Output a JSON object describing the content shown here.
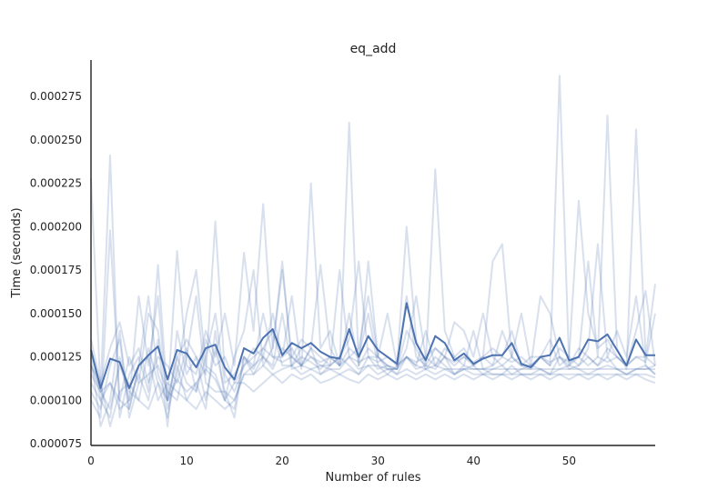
{
  "chart_data": {
    "type": "line",
    "title": "eq_add",
    "xlabel": "Number of rules",
    "ylabel": "Time (seconds)",
    "xlim": [
      0,
      59
    ],
    "ylim": [
      7.4e-05,
      0.000296
    ],
    "xticks": [
      0,
      10,
      20,
      30,
      40,
      50
    ],
    "yticks": [
      7.5e-05,
      0.0001,
      0.000125,
      0.00015,
      0.000175,
      0.0002,
      0.000225,
      0.00025,
      0.000275
    ],
    "ytick_labels": [
      "0.000075",
      "0.000100",
      "0.000125",
      "0.000150",
      "0.000175",
      "0.000200",
      "0.000225",
      "0.000250",
      "0.000275"
    ],
    "grid": false,
    "colors": {
      "run": "#4c72b0",
      "mean": "#4c72b0",
      "axis": "#222222"
    },
    "x": [
      0,
      1,
      2,
      3,
      4,
      5,
      6,
      7,
      8,
      9,
      10,
      11,
      12,
      13,
      14,
      15,
      16,
      17,
      18,
      19,
      20,
      21,
      22,
      23,
      24,
      25,
      26,
      27,
      28,
      29,
      30,
      31,
      32,
      33,
      34,
      35,
      36,
      37,
      38,
      39,
      40,
      41,
      42,
      43,
      44,
      45,
      46,
      47,
      48,
      49,
      50,
      51,
      52,
      53,
      54,
      55,
      56,
      57,
      58,
      59
    ],
    "mean": [
      0.000129,
      0.000107,
      0.000124,
      0.000122,
      0.000107,
      0.00012,
      0.000126,
      0.000131,
      0.000112,
      0.000129,
      0.000127,
      0.000119,
      0.00013,
      0.000132,
      0.000119,
      0.000112,
      0.00013,
      0.000127,
      0.000136,
      0.000141,
      0.000126,
      0.000133,
      0.00013,
      0.000133,
      0.000128,
      0.000125,
      0.000124,
      0.000141,
      0.000125,
      0.000137,
      0.000129,
      0.000125,
      0.000121,
      0.000156,
      0.000133,
      0.000123,
      0.000137,
      0.000133,
      0.000123,
      0.000127,
      0.000121,
      0.000124,
      0.000126,
      0.000126,
      0.000133,
      0.000121,
      0.000119,
      0.000125,
      0.000126,
      0.000136,
      0.000123,
      0.000125,
      0.000135,
      0.000134,
      0.000138,
      0.000129,
      0.00012,
      0.000135,
      0.000126,
      0.000126
    ],
    "series": [
      {
        "values": [
          0.000228,
          0.000105,
          9.5e-05,
          0.00012,
          0.000105,
          0.0001,
          0.00013,
          0.00011,
          0.0001,
          0.000112,
          0.000105,
          0.00011,
          0.000118,
          0.000112,
          0.0001,
          9.5e-05,
          0.000125,
          0.000118,
          0.00013,
          0.00014,
          0.00012,
          0.00012,
          0.000125,
          0.000122,
          0.000118,
          0.000125,
          0.00012,
          0.00026,
          0.00012,
          0.00013,
          0.000125,
          0.000118,
          0.000118,
          0.00014,
          0.00013,
          0.000118,
          0.000125,
          0.00012,
          0.000115,
          0.00012,
          0.000118,
          0.000118,
          0.000115,
          0.000115,
          0.00012,
          0.000115,
          0.000115,
          0.000118,
          0.000115,
          0.000125,
          0.000118,
          0.00012,
          0.000125,
          0.00012,
          0.000125,
          0.000118,
          0.000115,
          0.000118,
          0.000118,
          0.00012
        ]
      },
      {
        "values": [
          0.00012,
          0.000105,
          0.000241,
          9e-05,
          0.000115,
          0.000125,
          0.000105,
          0.000178,
          0.0001,
          0.000125,
          0.000135,
          0.000125,
          0.000115,
          0.000203,
          0.000115,
          0.000105,
          0.00012,
          0.00013,
          0.000125,
          0.00015,
          0.000125,
          0.00016,
          0.000118,
          0.000225,
          0.00013,
          0.00014,
          0.00012,
          0.00015,
          0.00012,
          0.00018,
          0.000125,
          0.00012,
          0.000118,
          0.00016,
          0.000125,
          0.00012,
          0.000233,
          0.00014,
          0.000125,
          0.00013,
          0.00012,
          0.000125,
          0.00018,
          0.00019,
          0.000125,
          0.00012,
          0.00012,
          0.000125,
          0.00012,
          0.000287,
          0.00012,
          0.000125,
          0.00018,
          0.000125,
          0.000264,
          0.00013,
          0.000118,
          0.000256,
          0.000125,
          0.00012
        ]
      },
      {
        "values": [
          0.0001,
          9e-05,
          0.000198,
          0.0001,
          0.000125,
          0.00011,
          0.00015,
          0.00014,
          0.0001,
          0.000186,
          0.00012,
          0.000115,
          0.00014,
          0.000125,
          0.00015,
          0.00012,
          0.000185,
          0.00014,
          0.000213,
          0.00013,
          0.000175,
          0.000125,
          0.000135,
          0.00013,
          0.000178,
          0.00013,
          0.00012,
          0.00013,
          0.000125,
          0.00015,
          0.00012,
          0.000115,
          0.00012,
          0.0002,
          0.000135,
          0.00012,
          0.00013,
          0.000125,
          0.00012,
          0.000125,
          0.00012,
          0.000125,
          0.00013,
          0.000125,
          0.00014,
          0.00012,
          0.000118,
          0.000125,
          0.00012,
          0.00013,
          0.000125,
          0.000215,
          0.00015,
          0.00013,
          0.000135,
          0.000125,
          0.00012,
          0.00014,
          0.000163,
          0.00012
        ]
      },
      {
        "values": [
          0.00011,
          0.0001,
          0.00011,
          9.5e-05,
          0.0001,
          0.00016,
          0.00012,
          0.00016,
          9.5e-05,
          0.000115,
          0.00015,
          0.000175,
          0.00012,
          0.000115,
          0.0001,
          0.000125,
          0.00014,
          0.000175,
          0.00012,
          0.00013,
          0.00018,
          0.00012,
          0.00013,
          0.000125,
          0.00012,
          0.00012,
          0.000125,
          0.000135,
          0.00018,
          0.000125,
          0.000125,
          0.00015,
          0.00012,
          0.000125,
          0.00012,
          0.00014,
          0.00012,
          0.00013,
          0.000125,
          0.00012,
          0.00014,
          0.000118,
          0.00012,
          0.00014,
          0.000125,
          0.00012,
          0.000125,
          0.000125,
          0.000135,
          0.00012,
          0.000125,
          0.00012,
          0.00013,
          0.00019,
          0.000125,
          0.00014,
          0.000125,
          0.00016,
          0.00012,
          0.000115
        ]
      },
      {
        "values": [
          0.000105,
          9.5e-05,
          0.00012,
          0.000135,
          9.5e-05,
          0.00012,
          0.00016,
          0.000115,
          0.0001,
          0.000125,
          0.00011,
          0.000105,
          0.000125,
          0.00015,
          0.00011,
          0.000115,
          0.000125,
          0.00012,
          0.00015,
          0.000125,
          0.000125,
          0.00013,
          0.00012,
          0.00013,
          0.000125,
          0.00012,
          0.000175,
          0.000125,
          0.00013,
          0.00016,
          0.000125,
          0.00012,
          0.000118,
          0.00013,
          0.00016,
          0.000125,
          0.00013,
          0.000125,
          0.000145,
          0.00014,
          0.000125,
          0.00015,
          0.000125,
          0.00012,
          0.000125,
          0.00015,
          0.00012,
          0.00016,
          0.00015,
          0.000125,
          0.00012,
          0.00013,
          0.000125,
          0.00012,
          0.00013,
          0.000125,
          0.00012,
          0.000125,
          0.000125,
          0.000167
        ]
      },
      {
        "values": [
          0.000125,
          8.5e-05,
          0.0001,
          0.00014,
          9e-05,
          0.00011,
          0.000115,
          0.00012,
          0.000105,
          0.0001,
          0.000125,
          0.00016,
          0.00011,
          0.000105,
          0.000105,
          0.0001,
          0.000115,
          0.00012,
          0.000125,
          0.00012,
          0.00015,
          0.000118,
          0.00012,
          0.000118,
          0.00012,
          0.000118,
          0.000118,
          0.000125,
          0.000118,
          0.00012,
          0.00012,
          0.000118,
          0.000118,
          0.000125,
          0.00012,
          0.000118,
          0.00012,
          0.000118,
          0.000118,
          0.000118,
          0.000118,
          0.000118,
          0.000118,
          0.000118,
          0.000118,
          0.000118,
          0.000118,
          0.000118,
          0.000118,
          0.000118,
          0.000118,
          0.000118,
          0.000118,
          0.000118,
          0.000118,
          0.000118,
          0.000118,
          0.000118,
          0.000118,
          0.000118
        ]
      },
      {
        "values": [
          0.00012,
          0.00011,
          8.5e-05,
          0.000105,
          0.00011,
          0.0001,
          9.5e-05,
          0.00011,
          9e-05,
          0.00012,
          0.0001,
          9.5e-05,
          0.000105,
          0.0001,
          9.5e-05,
          0.0001,
          0.000115,
          0.000115,
          0.00012,
          0.000115,
          0.000118,
          0.00012,
          0.000115,
          0.000118,
          0.000115,
          0.000118,
          0.000115,
          0.000118,
          0.000115,
          0.00012,
          0.000115,
          0.000118,
          0.000115,
          0.000118,
          0.000115,
          0.000118,
          0.000115,
          0.000118,
          0.000115,
          0.000118,
          0.000115,
          0.000115,
          0.000115,
          0.000115,
          0.000115,
          0.000115,
          0.000115,
          0.000115,
          0.000115,
          0.000115,
          0.000115,
          0.000115,
          0.000115,
          0.000115,
          0.000115,
          0.000115,
          0.000115,
          0.000115,
          0.000115,
          0.000113
        ]
      },
      {
        "values": [
          0.00013,
          0.0001,
          9e-05,
          0.000125,
          0.0001,
          0.000115,
          0.0001,
          0.000135,
          8.5e-05,
          0.00014,
          0.000115,
          0.000125,
          0.0001,
          0.00013,
          0.000105,
          9e-05,
          0.000125,
          0.000115,
          0.000125,
          0.000118,
          0.00013,
          0.000125,
          0.00012,
          0.00013,
          0.000115,
          0.00012,
          0.000125,
          0.00012,
          0.000115,
          0.000125,
          0.000118,
          0.00012,
          0.000115,
          0.000125,
          0.000118,
          0.00012,
          0.000118,
          0.000125,
          0.000115,
          0.000118,
          0.00012,
          0.000115,
          0.000118,
          0.00012,
          0.000115,
          0.000118,
          0.00012,
          0.000118,
          0.000115,
          0.000118,
          0.00012,
          0.000118,
          0.000115,
          0.000118,
          0.00012,
          0.000118,
          0.000115,
          0.000118,
          0.00012,
          0.000115
        ]
      },
      {
        "values": [
          0.000115,
          0.000105,
          0.00011,
          0.0001,
          9.5e-05,
          0.00012,
          0.000125,
          0.0001,
          0.00011,
          0.000105,
          0.0001,
          0.00011,
          9.5e-05,
          0.00014,
          0.0001,
          0.00011,
          0.00011,
          0.000105,
          0.00011,
          0.000115,
          0.00011,
          0.000115,
          0.000112,
          0.000115,
          0.00011,
          0.000112,
          0.000115,
          0.000112,
          0.00011,
          0.000115,
          0.000112,
          0.000115,
          0.000112,
          0.000115,
          0.000112,
          0.000115,
          0.000112,
          0.000115,
          0.000112,
          0.000115,
          0.000112,
          0.000115,
          0.000112,
          0.000115,
          0.000112,
          0.000115,
          0.000112,
          0.000115,
          0.000112,
          0.000115,
          0.000112,
          0.000115,
          0.000112,
          0.000115,
          0.000112,
          0.000115,
          0.000112,
          0.000115,
          0.000112,
          0.00011
        ]
      },
      {
        "values": [
          0.000135,
          0.00011,
          0.00013,
          0.000145,
          0.00012,
          0.00013,
          0.00011,
          0.000125,
          0.00012,
          0.00011,
          0.00013,
          0.000105,
          0.000135,
          0.00012,
          0.000125,
          0.00011,
          0.00012,
          0.000125,
          0.00013,
          0.000125,
          0.000122,
          0.000125,
          0.00012,
          0.000125,
          0.000122,
          0.000125,
          0.00012,
          0.000125,
          0.000122,
          0.000125,
          0.000122,
          0.000125,
          0.00012,
          0.000125,
          0.000122,
          0.000125,
          0.00012,
          0.000125,
          0.000122,
          0.000125,
          0.000122,
          0.000125,
          0.00012,
          0.000125,
          0.000122,
          0.000125,
          0.00012,
          0.000125,
          0.000122,
          0.000125,
          0.000122,
          0.000125,
          0.00012,
          0.000125,
          0.000122,
          0.000125,
          0.00012,
          0.000125,
          0.000122,
          0.00015
        ]
      }
    ]
  }
}
